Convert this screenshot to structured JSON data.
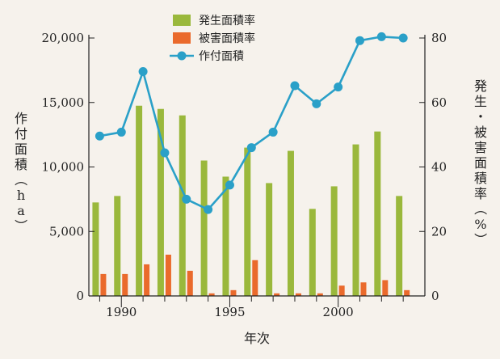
{
  "chart_data": {
    "type": "bar+line",
    "title": "",
    "years": [
      1989,
      1990,
      1991,
      1992,
      1993,
      1994,
      1995,
      1996,
      1997,
      1998,
      1999,
      2000,
      2001,
      2002,
      2003
    ],
    "x_tick_labels": [
      "1990",
      "1995",
      "2000"
    ],
    "xlabel": "年次",
    "y_left": {
      "label": "作付面積（ha）",
      "ylim": [
        0,
        20000
      ],
      "ticks": [
        "0",
        "5,000",
        "10,000",
        "15,000",
        "20,000"
      ]
    },
    "y_right": {
      "label": "発生・被害面積率（%）",
      "ylim": [
        0,
        80
      ],
      "ticks": [
        "0",
        "20",
        "40",
        "60",
        "80"
      ]
    },
    "series": [
      {
        "name": "発生面積率",
        "kind": "bar",
        "axis": "right",
        "color": "#9ab83c",
        "values": [
          29,
          31,
          59,
          58,
          56,
          42,
          37,
          46,
          35,
          45,
          27,
          34,
          47,
          51,
          31
        ]
      },
      {
        "name": "被害面積率",
        "kind": "bar",
        "axis": "right",
        "color": "#ea6a2c",
        "values": [
          6.8,
          6.8,
          9.8,
          12.8,
          7.8,
          0.8,
          1.8,
          11.1,
          0.8,
          0.8,
          0.8,
          3.2,
          4.2,
          4.9,
          1.8
        ]
      },
      {
        "name": "作付面積",
        "kind": "line",
        "axis": "left",
        "color": "#2aa0c8",
        "values": [
          12400,
          12700,
          17400,
          11100,
          7500,
          6700,
          8600,
          11500,
          12700,
          16300,
          14900,
          16200,
          19800,
          20100,
          20000
        ]
      }
    ],
    "legend_position": "top-center"
  }
}
